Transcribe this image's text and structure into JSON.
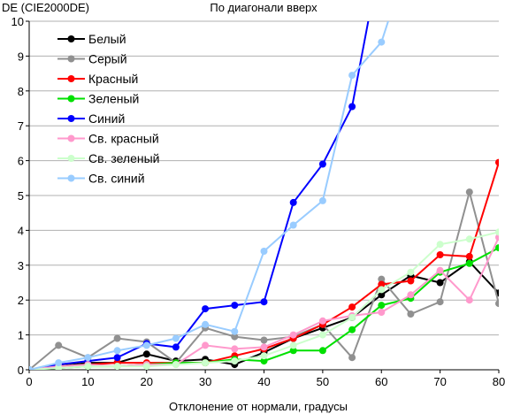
{
  "chart_data": {
    "type": "line",
    "title": "По диагонали вверх",
    "ylabel": "DE (CIE2000DE)",
    "xlabel": "Отклонение от нормали, градусы",
    "xlim": [
      0,
      80
    ],
    "ylim": [
      0,
      10
    ],
    "xticks": [
      0,
      10,
      20,
      30,
      40,
      50,
      60,
      70,
      80
    ],
    "yticks": [
      0,
      1,
      2,
      3,
      4,
      5,
      6,
      7,
      8,
      9,
      10
    ],
    "grid": "horizontal",
    "legend_position": "top-left",
    "x": [
      0,
      5,
      10,
      15,
      20,
      25,
      30,
      35,
      40,
      45,
      50,
      55,
      60,
      65,
      70,
      75,
      80
    ],
    "series": [
      {
        "name": "Белый",
        "color": "#000000",
        "values": [
          0,
          0.1,
          0.2,
          0.2,
          0.45,
          0.25,
          0.3,
          0.15,
          0.5,
          0.9,
          1.2,
          1.5,
          2.15,
          2.7,
          2.5,
          3.1,
          2.2
        ]
      },
      {
        "name": "Серый",
        "color": "#909090",
        "values": [
          0,
          0.7,
          0.35,
          0.9,
          0.8,
          0.2,
          1.2,
          0.95,
          0.85,
          0.95,
          1.3,
          0.35,
          2.6,
          1.6,
          1.95,
          5.1,
          1.9
        ]
      },
      {
        "name": "Красный",
        "color": "#ff0000",
        "values": [
          0,
          0.1,
          0.15,
          0.2,
          0.2,
          0.2,
          0.2,
          0.4,
          0.6,
          0.9,
          1.3,
          1.8,
          2.45,
          2.55,
          3.3,
          3.25,
          5.95
        ]
      },
      {
        "name": "Зеленый",
        "color": "#00e000",
        "values": [
          0,
          0.05,
          0.1,
          0.1,
          0.15,
          0.2,
          0.2,
          0.3,
          0.25,
          0.55,
          0.55,
          1.15,
          1.85,
          2.05,
          2.8,
          3.05,
          3.5
        ]
      },
      {
        "name": "Синий",
        "color": "#0000ff",
        "values": [
          0,
          0.15,
          0.25,
          0.35,
          0.75,
          0.65,
          1.75,
          1.85,
          1.95,
          4.8,
          5.9,
          7.55,
          12,
          null,
          null,
          null,
          null
        ]
      },
      {
        "name": "Св. красный",
        "color": "#ff99cc",
        "values": [
          0,
          0.1,
          0.15,
          0.1,
          0.15,
          0.15,
          0.7,
          0.6,
          0.65,
          1.0,
          1.4,
          1.55,
          1.65,
          2.15,
          2.85,
          2.0,
          3.8
        ]
      },
      {
        "name": "Св. зеленый",
        "color": "#ccffcc",
        "values": [
          0,
          0.05,
          0.1,
          0.1,
          0.1,
          0.15,
          0.2,
          0.25,
          0.4,
          0.7,
          1.0,
          1.5,
          2.3,
          2.8,
          3.6,
          3.75,
          3.95
        ]
      },
      {
        "name": "Св. синий",
        "color": "#99ccff",
        "values": [
          0,
          0.2,
          0.35,
          0.55,
          0.7,
          0.9,
          1.3,
          1.1,
          3.4,
          4.15,
          4.85,
          8.45,
          9.4,
          12,
          null,
          null,
          null
        ]
      }
    ]
  }
}
